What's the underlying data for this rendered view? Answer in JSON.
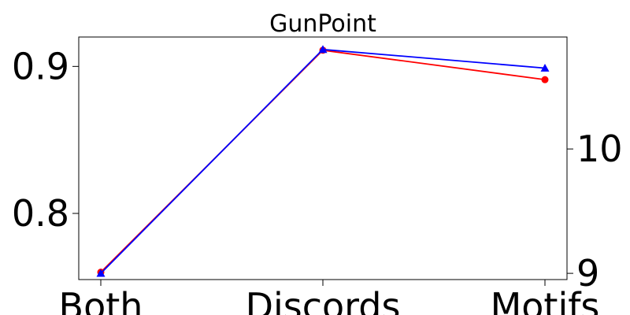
{
  "chart_data": {
    "type": "line",
    "title": "GunPoint",
    "categories": [
      "Both",
      "Discords",
      "Motifs"
    ],
    "y_left": {
      "label": "",
      "range": [
        0.755,
        0.92
      ],
      "ticks": [
        0.8,
        0.9
      ],
      "tick_labels": [
        "0.8",
        "0.9"
      ]
    },
    "y_right": {
      "label": "",
      "range": [
        8.95,
        10.9
      ],
      "ticks": [
        9,
        10
      ],
      "tick_labels": [
        "9",
        "10"
      ]
    },
    "series": [
      {
        "axis": "left",
        "color": "#ff0000",
        "marker": "circle",
        "values": [
          0.76,
          0.911,
          0.891
        ]
      },
      {
        "axis": "right",
        "color": "#0000ff",
        "marker": "triangle",
        "values": [
          9.0,
          10.8,
          10.65
        ]
      }
    ],
    "grid": false
  }
}
